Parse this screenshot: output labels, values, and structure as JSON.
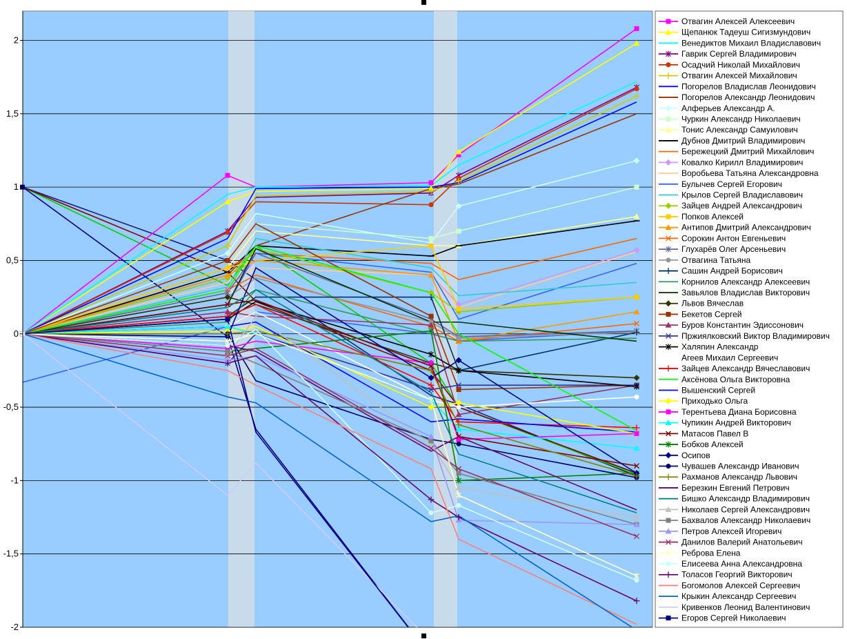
{
  "chart_data": {
    "type": "line",
    "title": "",
    "xlabel": "",
    "ylabel": "",
    "ylim": [
      -2,
      2.2
    ],
    "yticks": [
      2,
      1.5,
      1,
      0.5,
      0,
      -0.5,
      -1,
      -1.5,
      -2
    ],
    "ytick_labels": [
      "2",
      "1,5",
      "1",
      "0,5",
      "0",
      "-0,5",
      "-1",
      "-1,5",
      "-2"
    ],
    "grid": true,
    "legend_position": "right",
    "plot_bg": "#99ccff",
    "x": [
      0,
      1,
      2,
      3,
      4,
      5
    ],
    "series": [
      {
        "name": "Отвагин Алексей Алексеевич",
        "color": "#ff00ff",
        "marker": "square",
        "values": [
          0,
          1.08,
          1.0,
          1.03,
          1.22,
          2.08
        ]
      },
      {
        "name": "Щепанюк Тадеуш Сигизмундович",
        "color": "#ffff00",
        "marker": "triangle",
        "values": [
          0,
          0.9,
          0.97,
          0.99,
          1.24,
          1.98
        ]
      },
      {
        "name": "Венедиктов Михаил Владиславович",
        "color": "#00ffff",
        "marker": "none",
        "values": [
          0,
          0.95,
          1.0,
          1.01,
          1.15,
          1.72
        ]
      },
      {
        "name": "Гаврик Сергей Владимирович",
        "color": "#800080",
        "marker": "star",
        "values": [
          0,
          0.7,
          0.93,
          0.96,
          1.08,
          1.68
        ]
      },
      {
        "name": "Осадчий Николай Михайлович",
        "color": "#cc3300",
        "marker": "circle",
        "values": [
          0,
          0.69,
          0.9,
          0.88,
          1.06,
          1.67
        ]
      },
      {
        "name": "Отвагин Алексей Михайлович",
        "color": "#cccc00",
        "marker": "plus",
        "values": [
          0,
          0.6,
          0.94,
          0.97,
          1.04,
          1.62
        ]
      },
      {
        "name": "Погорелов Владислав Леонидович",
        "color": "#0000ff",
        "marker": "none",
        "values": [
          0,
          0.65,
          0.99,
          1.0,
          1.03,
          1.58
        ]
      },
      {
        "name": "Погорелов Александр Леонидович",
        "color": "#993300",
        "marker": "none",
        "values": [
          0,
          0.4,
          0.6,
          0.99,
          1.02,
          1.5
        ]
      },
      {
        "name": "Алферьев Александр А.",
        "color": "#ccffff",
        "marker": "diamond",
        "values": [
          0,
          0.55,
          0.82,
          0.62,
          0.87,
          1.18
        ]
      },
      {
        "name": "Чуркин Александр Николаевич",
        "color": "#ccffcc",
        "marker": "square",
        "values": [
          0,
          0.5,
          0.75,
          0.65,
          0.7,
          1.0
        ]
      },
      {
        "name": "Тонис Александр Самуилович",
        "color": "#ffff99",
        "marker": "triangle",
        "values": [
          0,
          0.45,
          0.7,
          0.6,
          0.6,
          0.8
        ]
      },
      {
        "name": "Дубнов Дмитрий Владимирович",
        "color": "#000000",
        "marker": "dash",
        "values": [
          0,
          0.42,
          0.6,
          0.53,
          0.6,
          0.77
        ]
      },
      {
        "name": "Бережецкий Дмитрий Михайлович",
        "color": "#ff6600",
        "marker": "none",
        "values": [
          0,
          0.45,
          0.55,
          0.48,
          0.37,
          0.65
        ]
      },
      {
        "name": "Ковалко Кирилл Владимирович",
        "color": "#cc99ff",
        "marker": "diamond",
        "values": [
          0,
          0.3,
          0.5,
          0.4,
          0.2,
          0.57
        ]
      },
      {
        "name": "Воробьева Татьяна Александровна",
        "color": "#ffcc99",
        "marker": "none",
        "values": [
          0,
          0.35,
          0.45,
          0.4,
          0.18,
          0.56
        ]
      },
      {
        "name": "Булычев Сергей Егорович",
        "color": "#3366ff",
        "marker": "none",
        "values": [
          0,
          0.2,
          0.55,
          0.42,
          0.1,
          0.48
        ]
      },
      {
        "name": "Крылов Сергей Владиславович",
        "color": "#33cccc",
        "marker": "none",
        "values": [
          0,
          0.32,
          0.65,
          0.45,
          0.26,
          0.35
        ]
      },
      {
        "name": "Зайцев Андрей Александрович",
        "color": "#99cc00",
        "marker": "diamond",
        "values": [
          0,
          0.38,
          0.58,
          0.28,
          0.15,
          0.25
        ]
      },
      {
        "name": "Попков Алексей",
        "color": "#ffcc00",
        "marker": "square",
        "values": [
          0,
          0.45,
          0.5,
          0.6,
          0.17,
          0.25
        ]
      },
      {
        "name": "Антипов Дмитрий Александрович",
        "color": "#ff9900",
        "marker": "triangle",
        "values": [
          0,
          0.4,
          0.5,
          0.4,
          -0.05,
          0.15
        ]
      },
      {
        "name": "Сорокин Антон Евгеньевич",
        "color": "#ff6600",
        "marker": "x",
        "values": [
          0,
          0.3,
          0.4,
          0.05,
          -0.05,
          0.07
        ]
      },
      {
        "name": "Глухарёв Олег Арсеньевич",
        "color": "#666699",
        "marker": "star",
        "values": [
          0,
          0.28,
          0.55,
          0.1,
          -0.02,
          0.02
        ]
      },
      {
        "name": "Отвагина Татьяна",
        "color": "#969696",
        "marker": "circle",
        "values": [
          0,
          0.25,
          0.38,
          0.08,
          -0.03,
          0.01
        ]
      },
      {
        "name": "Сашин Андрей Борисович",
        "color": "#003366",
        "marker": "plus",
        "values": [
          0,
          0.12,
          0.25,
          0.25,
          -0.25,
          0.01
        ]
      },
      {
        "name": "Корнилов Александр Алексеевич",
        "color": "#339966",
        "marker": "none",
        "values": [
          0,
          0.08,
          0.3,
          0.0,
          -0.05,
          -0.03
        ]
      },
      {
        "name": "Завьялов Владислав Викторович",
        "color": "#003300",
        "marker": "none",
        "values": [
          0,
          0.2,
          0.58,
          0.08,
          0.08,
          -0.05
        ]
      },
      {
        "name": "Львов Вячеслав",
        "color": "#333300",
        "marker": "diamond",
        "values": [
          0,
          0.25,
          0.2,
          -0.2,
          -0.25,
          -0.3
        ]
      },
      {
        "name": "Бекетов Сергей",
        "color": "#993300",
        "marker": "square",
        "values": [
          0,
          0.5,
          0.75,
          0.12,
          -0.38,
          -0.35
        ]
      },
      {
        "name": "Буров Константин Эдиссонович",
        "color": "#993366",
        "marker": "triangle",
        "values": [
          0,
          0.15,
          0.12,
          0.06,
          -0.55,
          -0.35
        ]
      },
      {
        "name": "Пржиялковский Виктор Владимирович",
        "color": "#333399",
        "marker": "x",
        "values": [
          0,
          -0.2,
          0.0,
          -0.38,
          -0.35,
          -0.35
        ]
      },
      {
        "name": "Халяпин Александр",
        "color": "#000000",
        "marker": "star",
        "values": [
          0,
          0.1,
          0.22,
          -0.14,
          -0.25,
          -0.36
        ]
      },
      {
        "name": "Агеев Михаил Сергеевич",
        "color": "#ffffff",
        "marker": "circle",
        "values": [
          0,
          0.05,
          0.15,
          -0.45,
          -0.5,
          -0.43
        ]
      },
      {
        "name": "Зайцев Александр Вячеславович",
        "color": "#ff0000",
        "marker": "plus",
        "values": [
          0,
          0.12,
          0.2,
          -0.35,
          -0.6,
          -0.64
        ]
      },
      {
        "name": "Аксёнова Ольга Викторовна",
        "color": "#00ff00",
        "marker": "none",
        "values": [
          0,
          0.3,
          0.6,
          0.28,
          0.0,
          -0.66
        ]
      },
      {
        "name": "Вышенский Сергей",
        "color": "#0000ff",
        "marker": "none",
        "values": [
          0,
          0.05,
          0.08,
          -0.6,
          -0.58,
          -0.67
        ]
      },
      {
        "name": "Приходько Ольга",
        "color": "#ffff00",
        "marker": "diamond",
        "values": [
          0,
          0.02,
          0.05,
          -0.5,
          -0.47,
          -0.68
        ]
      },
      {
        "name": "Терентьева Диана Борисовна",
        "color": "#ff00ff",
        "marker": "square",
        "values": [
          0,
          -0.1,
          -0.05,
          -0.2,
          -0.72,
          -0.68
        ]
      },
      {
        "name": "Чупикин Андрей Викторович",
        "color": "#00ffff",
        "marker": "triangle",
        "values": [
          0,
          0.05,
          0.0,
          -0.45,
          -0.65,
          -0.78
        ]
      },
      {
        "name": "Матасов Павел В",
        "color": "#800000",
        "marker": "x",
        "values": [
          0,
          0.2,
          0.23,
          -0.22,
          -0.7,
          -0.9
        ]
      },
      {
        "name": "Бобков Алексей",
        "color": "#008000",
        "marker": "star",
        "values": [
          0,
          -0.12,
          -0.1,
          0.02,
          -1.0,
          -0.95
        ]
      },
      {
        "name": "Осипов",
        "color": "#000080",
        "marker": "diamond",
        "values": [
          0,
          -0.02,
          0.45,
          -0.3,
          -0.18,
          -0.95
        ]
      },
      {
        "name": "Чувашев Александр Иванович",
        "color": "#000066",
        "marker": "circle",
        "values": [
          0,
          0.0,
          -0.32,
          -0.72,
          -0.75,
          -0.98
        ]
      },
      {
        "name": "Рахманов Александр Львович",
        "color": "#808000",
        "marker": "plus",
        "values": [
          0,
          0.0,
          0.02,
          -0.25,
          -0.62,
          -0.97
        ]
      },
      {
        "name": "Березкин Евгений Петрович",
        "color": "#660066",
        "marker": "none",
        "values": [
          0,
          -0.08,
          -0.12,
          -0.8,
          -0.7,
          -1.2
        ]
      },
      {
        "name": "Бишко Александр Владимирович",
        "color": "#008080",
        "marker": "none",
        "values": [
          0,
          0.18,
          0.3,
          -0.4,
          -0.82,
          -1.22
        ]
      },
      {
        "name": "Николаев Сергей Александрович",
        "color": "#c0c0c0",
        "marker": "triangle",
        "values": [
          0,
          -0.15,
          0.12,
          -0.75,
          -1.05,
          -1.25
        ]
      },
      {
        "name": "Бахвалов Александр Николаевич",
        "color": "#808080",
        "marker": "square",
        "values": [
          0,
          -0.12,
          -0.2,
          -0.73,
          -0.95,
          -1.3
        ]
      },
      {
        "name": "Петров Алексей Игоревич",
        "color": "#9999ff",
        "marker": "triangle",
        "values": [
          0,
          -0.18,
          -0.15,
          -0.7,
          -1.27,
          -1.3
        ]
      },
      {
        "name": "Данилов Валерий Анатольевич",
        "color": "#993366",
        "marker": "x",
        "values": [
          0,
          -0.15,
          -0.1,
          -0.78,
          -0.92,
          -1.38
        ]
      },
      {
        "name": "Реброва Елена",
        "color": "#ffffcc",
        "marker": "star",
        "values": [
          0,
          -0.05,
          0.0,
          -0.45,
          -1.1,
          -1.65
        ]
      },
      {
        "name": "Елисеева Анна Александровна",
        "color": "#ccffff",
        "marker": "circle",
        "values": [
          0,
          -0.08,
          0.03,
          -1.22,
          -1.17,
          -1.68
        ]
      },
      {
        "name": "Толасов Георгий Викторович",
        "color": "#660066",
        "marker": "plus",
        "values": [
          0,
          -0.2,
          -0.15,
          -1.13,
          -1.25,
          -1.82
        ]
      },
      {
        "name": "Богомолов Алексей Сергеевич",
        "color": "#ff8080",
        "marker": "none",
        "values": [
          0,
          -0.25,
          -0.35,
          -0.92,
          -1.4,
          -1.98
        ]
      },
      {
        "name": "Крыкин Александр Сергеевич",
        "color": "#0066cc",
        "marker": "none",
        "values": [
          0,
          -0.43,
          -0.47,
          -1.28,
          -1.24,
          -2.02
        ]
      },
      {
        "name": "Кривенков Леонид Валентинович",
        "color": "#ccccff",
        "marker": "none",
        "values": [
          0,
          -1.1,
          -0.88,
          -2.1,
          -2.1,
          -2.1
        ]
      },
      {
        "name": "Егоров Сергей Николаевич",
        "color": "#000080",
        "marker": "square",
        "values": [
          0,
          0.1,
          -0.67,
          -2.2,
          -2.2,
          -2.2
        ]
      }
    ],
    "extra_lines": [
      {
        "color": "#1f1f7a",
        "values": [
          1,
          0.5,
          0.37,
          -0.42,
          -0.48,
          -0.97
        ]
      },
      {
        "color": "#00cc00",
        "values": [
          1,
          0.33,
          0.6,
          -0.2,
          -0.5,
          -0.96
        ]
      },
      {
        "color": "#800000",
        "values": [
          1,
          0.42,
          0.22,
          -0.25,
          -0.5,
          -0.95
        ]
      },
      {
        "color": "#000080",
        "values": [
          1,
          -0.02,
          -0.65,
          -2.2,
          -2.2,
          -2.2
        ]
      },
      {
        "color": "#3366ff",
        "values": [
          -0.33,
          0.05,
          0.15,
          0.0,
          -0.05,
          0.02
        ]
      }
    ]
  }
}
